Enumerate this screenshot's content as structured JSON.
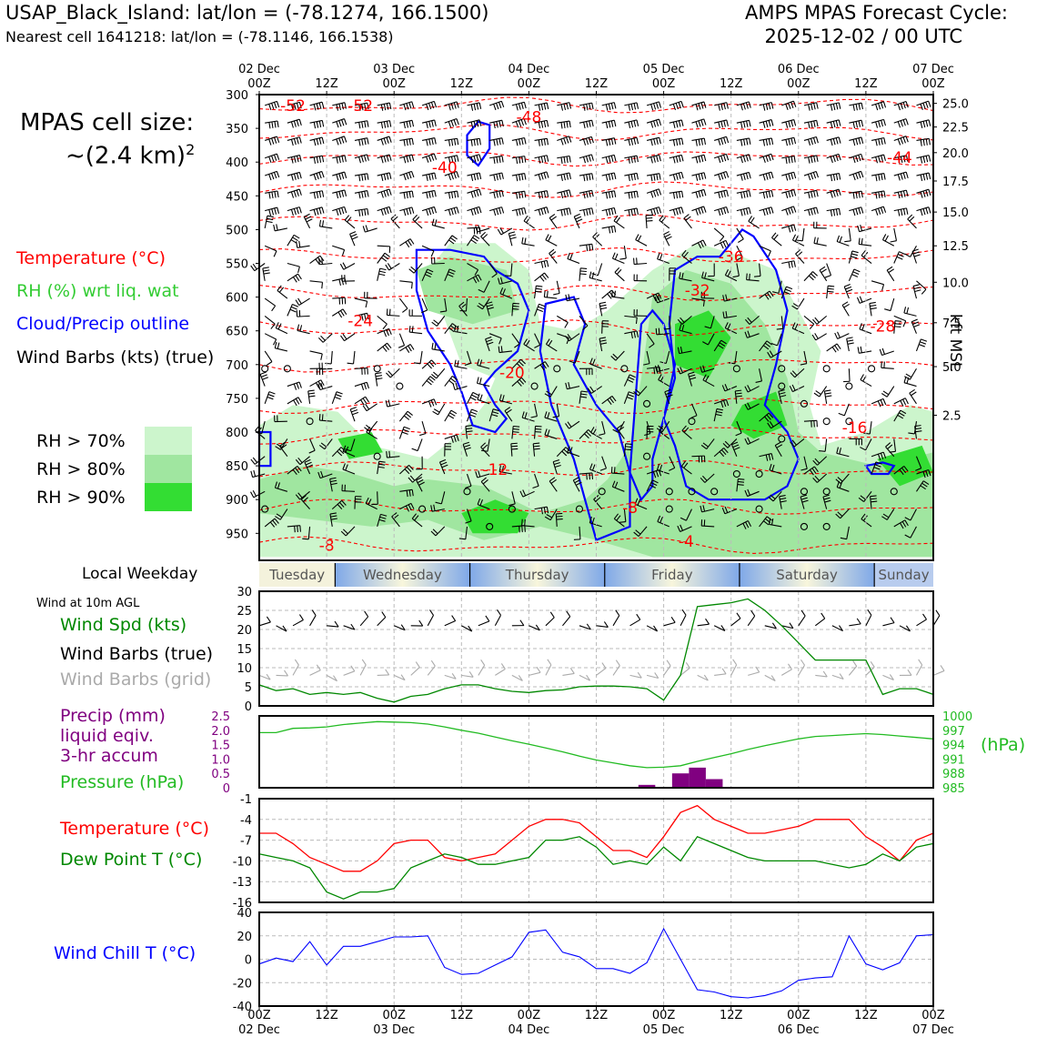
{
  "header": {
    "station": "USAP_Black_Island: lat/lon = (-78.1274, 166.1500)",
    "nearest": "Nearest cell 1641218: lat/lon = (-78.1146, 166.1538)",
    "cycle_line1": "AMPS MPAS Forecast Cycle:",
    "cycle_line2": "2025-12-02 / 00 UTC"
  },
  "left": {
    "cell_size_line1": "MPAS cell size:",
    "cell_size_line2": "~(2.4 km)",
    "cell_size_sup": "2",
    "legend_temp": "Temperature (°C)",
    "legend_rh": "RH (%) wrt liq. wat",
    "legend_cloud": "Cloud/Precip outline",
    "legend_wind": "Wind Barbs (kts) (true)",
    "rh_levels": [
      "RH > 70%",
      "RH > 80%",
      "RH > 90%"
    ],
    "local_weekday": "Local Weekday",
    "wind_10m": "Wind at 10m AGL",
    "wind_spd": "Wind Spd (kts)",
    "wind_true": "Wind Barbs (true)",
    "wind_grid": "Wind Barbs (grid)",
    "precip_1": "Precip (mm)",
    "precip_2": "liquid eqiv.",
    "precip_3": "3-hr accum",
    "pressure": "Pressure (hPa)",
    "temp2": "Temperature (°C)",
    "dew": "Dew Point T (°C)",
    "windchill": "Wind Chill T (°C)"
  },
  "colors": {
    "rh70": "#ccf5cc",
    "rh80": "#a0e6a0",
    "rh90": "#33dd33",
    "temp": "#ff0000",
    "rh_text": "#33cc33",
    "cloud": "#0000ff",
    "wind_spd": "#008800",
    "grid_barb": "#aaaaaa",
    "precip": "#800080",
    "pressure": "#22bb22",
    "dew": "#008800",
    "windchill": "#0000ff"
  },
  "chart_data": [
    {
      "type": "heatmap",
      "name_on_chart": "",
      "x_labels_top": [
        [
          "02 Dec",
          "00Z"
        ],
        [
          "",
          "12Z"
        ],
        [
          "03 Dec",
          "00Z"
        ],
        [
          "",
          "12Z"
        ],
        [
          "04 Dec",
          "00Z"
        ],
        [
          "",
          "12Z"
        ],
        [
          "05 Dec",
          "00Z"
        ],
        [
          "",
          "12Z"
        ],
        [
          "06 Dec",
          "00Z"
        ],
        [
          "",
          "12Z"
        ],
        [
          "07 Dec",
          "00Z"
        ]
      ],
      "x_hours": [
        0,
        12,
        24,
        36,
        48,
        60,
        72,
        84,
        96,
        108,
        120
      ],
      "pressure_ticks": [
        300,
        350,
        400,
        450,
        500,
        550,
        600,
        650,
        700,
        750,
        800,
        850,
        900,
        950
      ],
      "ylim_hpa": [
        300,
        990
      ],
      "kft_ticks": [
        {
          "label": "25.0",
          "hpa": 313
        },
        {
          "label": "22.5",
          "hpa": 348
        },
        {
          "label": "20.0",
          "hpa": 386
        },
        {
          "label": "17.5",
          "hpa": 428
        },
        {
          "label": "15.0",
          "hpa": 474
        },
        {
          "label": "12.5",
          "hpa": 524
        },
        {
          "label": "10.0",
          "hpa": 578
        },
        {
          "label": "7.5",
          "hpa": 638
        },
        {
          "label": "5.0",
          "hpa": 703
        },
        {
          "label": "2.5",
          "hpa": 775
        }
      ],
      "kft_label": "kft MSL",
      "temp_labels": [
        {
          "text": "-52",
          "h": 6,
          "p": 316
        },
        {
          "text": "-52",
          "h": 18,
          "p": 316
        },
        {
          "text": "-48",
          "h": 48,
          "p": 333
        },
        {
          "text": "-44",
          "h": 114,
          "p": 393
        },
        {
          "text": "-40",
          "h": 33,
          "p": 408
        },
        {
          "text": "-36",
          "h": 84,
          "p": 540
        },
        {
          "text": "-32",
          "h": 78,
          "p": 590
        },
        {
          "text": "-28",
          "h": 111,
          "p": 643
        },
        {
          "text": "-24",
          "h": 18,
          "p": 635
        },
        {
          "text": "-20",
          "h": 45,
          "p": 712
        },
        {
          "text": "-16",
          "h": 106,
          "p": 793
        },
        {
          "text": "-12",
          "h": 42,
          "p": 855
        },
        {
          "text": "-8",
          "h": 66,
          "p": 912
        },
        {
          "text": "-8",
          "h": 12,
          "p": 968
        },
        {
          "text": "-4",
          "h": 76,
          "p": 962
        }
      ]
    },
    {
      "type": "line",
      "name_on_chart": "",
      "x": [
        0,
        3,
        6,
        9,
        12,
        15,
        18,
        21,
        24,
        27,
        30,
        33,
        36,
        39,
        42,
        45,
        48,
        51,
        54,
        57,
        60,
        63,
        66,
        69,
        72,
        75,
        78,
        81,
        84,
        87,
        90,
        93,
        96,
        99,
        102,
        105,
        108,
        111,
        114,
        117,
        120
      ],
      "wind_speed": [
        5.5,
        4,
        4.5,
        3,
        3.5,
        3,
        3.5,
        2,
        1,
        2.5,
        3,
        4.5,
        5.5,
        5.5,
        4.5,
        3.8,
        3.5,
        4,
        4.2,
        5,
        5.2,
        5.2,
        5,
        4.5,
        1.5,
        8,
        26,
        26.5,
        27,
        28,
        25,
        21,
        16.5,
        12,
        12,
        12,
        12,
        3,
        4.5,
        4.5,
        3
      ],
      "ylim": [
        0,
        30
      ],
      "yticks": [
        0,
        5,
        10,
        15,
        20,
        25,
        30
      ]
    },
    {
      "type": "bar",
      "name_on_chart": "",
      "precip_x": [
        69,
        75,
        78,
        81
      ],
      "precip_mm": [
        0.1,
        0.5,
        0.7,
        0.3
      ],
      "precip_ylim": [
        0,
        2.5
      ],
      "precip_ticks": [
        "0",
        "0.5",
        "1.0",
        "1.5",
        "2.0",
        "2.5"
      ],
      "pressure_x": [
        0,
        3,
        6,
        9,
        12,
        15,
        18,
        21,
        24,
        27,
        30,
        33,
        36,
        39,
        42,
        45,
        48,
        51,
        54,
        57,
        60,
        63,
        66,
        69,
        72,
        75,
        78,
        81,
        84,
        87,
        90,
        93,
        96,
        99,
        102,
        105,
        108,
        111,
        114,
        117,
        120
      ],
      "pressure_hpa": [
        996.5,
        996.5,
        997.4,
        997.5,
        997.7,
        998.2,
        998.5,
        998.8,
        998.7,
        998.6,
        998.3,
        997.7,
        997,
        996.4,
        995.6,
        994.8,
        994.1,
        993.3,
        992.5,
        991.6,
        990.8,
        990.2,
        989.6,
        989.2,
        989.3,
        989.6,
        990.5,
        991.3,
        992.1,
        993,
        993.8,
        994.5,
        995.2,
        995.7,
        995.9,
        996.1,
        996.3,
        996.1,
        995.8,
        995.5,
        995.2
      ],
      "pressure_ylim": [
        985,
        1000
      ],
      "pressure_ticks": [
        "1000",
        "997",
        "994",
        "991",
        "988",
        "985"
      ],
      "pressure_unit": "(hPa)"
    },
    {
      "type": "line",
      "name_on_chart": "",
      "x": [
        0,
        3,
        6,
        9,
        12,
        15,
        18,
        21,
        24,
        27,
        30,
        33,
        36,
        39,
        42,
        45,
        48,
        51,
        54,
        57,
        60,
        63,
        66,
        69,
        72,
        75,
        78,
        81,
        84,
        87,
        90,
        93,
        96,
        99,
        102,
        105,
        108,
        111,
        114,
        117,
        120
      ],
      "temperature": [
        -6,
        -6,
        -7.5,
        -9.5,
        -10.5,
        -11.5,
        -11.5,
        -10,
        -7.5,
        -7,
        -7,
        -9.5,
        -10,
        -9.5,
        -9,
        -7,
        -5,
        -4,
        -4,
        -4.5,
        -6.5,
        -8.5,
        -8.5,
        -9.5,
        -6.5,
        -3,
        -2,
        -4,
        -5,
        -6,
        -6,
        -5.5,
        -5,
        -4,
        -4,
        -4,
        -6.5,
        -8,
        -10,
        -7,
        -6
      ],
      "dew_point": [
        -9,
        -9.5,
        -10,
        -11,
        -14.5,
        -15.5,
        -14.5,
        -14.5,
        -14,
        -11,
        -10,
        -9,
        -9.5,
        -10.5,
        -10.5,
        -10,
        -9.5,
        -7,
        -7,
        -6.5,
        -8,
        -10.5,
        -10,
        -10.5,
        -8,
        -10,
        -6.5,
        -7.5,
        -8.5,
        -9.5,
        -10,
        -10,
        -10,
        -10,
        -10.5,
        -11,
        -10.5,
        -9,
        -10,
        -8,
        -7.5
      ],
      "ylim": [
        -16,
        -1
      ],
      "yticks": [
        -1,
        -4,
        -7,
        -10,
        -13,
        -16
      ]
    },
    {
      "type": "line",
      "name_on_chart": "",
      "x": [
        0,
        3,
        6,
        9,
        12,
        15,
        18,
        21,
        24,
        27,
        30,
        33,
        36,
        39,
        42,
        45,
        48,
        51,
        54,
        57,
        60,
        63,
        66,
        69,
        72,
        75,
        78,
        81,
        84,
        87,
        90,
        93,
        96,
        99,
        102,
        105,
        108,
        111,
        114,
        117,
        120
      ],
      "wind_chill": [
        -4,
        1,
        -2,
        15,
        -5,
        11,
        11,
        15,
        19,
        19,
        20,
        -7,
        -13,
        -12,
        -5,
        2,
        23,
        25,
        6,
        2,
        -8,
        -8,
        -12,
        -3,
        26,
        0,
        -26,
        -28,
        -32,
        -33,
        -31,
        -27,
        -18,
        -16,
        -15,
        20,
        -4,
        -9,
        -3,
        20,
        21
      ],
      "ylim": [
        -40,
        40
      ],
      "yticks": [
        40,
        20,
        0,
        -20,
        -40
      ]
    }
  ],
  "weekdays": [
    "Tuesday",
    "Wednesday",
    "Thursday",
    "Friday",
    "Saturday",
    "Sunday"
  ],
  "bottom_x_labels": [
    [
      "00Z",
      "02 Dec"
    ],
    [
      "12Z",
      ""
    ],
    [
      "00Z",
      "03 Dec"
    ],
    [
      "12Z",
      ""
    ],
    [
      "00Z",
      "04 Dec"
    ],
    [
      "12Z",
      ""
    ],
    [
      "00Z",
      "05 Dec"
    ],
    [
      "12Z",
      ""
    ],
    [
      "00Z",
      "06 Dec"
    ],
    [
      "12Z",
      ""
    ],
    [
      "00Z",
      "07 Dec"
    ]
  ]
}
